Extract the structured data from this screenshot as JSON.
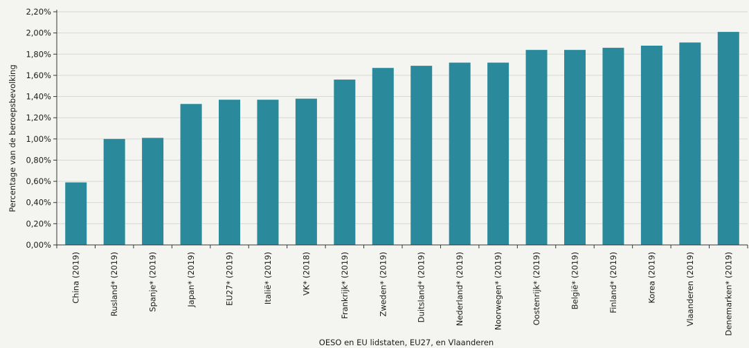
{
  "chart_data": {
    "type": "bar",
    "title": "",
    "xlabel": "OESO en EU lidstaten, EU27, en Vlaanderen",
    "ylabel": "Percentage van de beroepsbevolking",
    "ylim": [
      0,
      2.2
    ],
    "y_ticks": [
      "0,00%",
      "0,20%",
      "0,40%",
      "0,60%",
      "0,80%",
      "1,00%",
      "1,20%",
      "1,40%",
      "1,60%",
      "1,80%",
      "2,00%",
      "2,20%"
    ],
    "grid": true,
    "legend": "none",
    "bar_color": "#2a899a",
    "categories": [
      "China (2019)",
      "Rusland* (2019)",
      "Spanje* (2019)",
      "Japan* (2019)",
      "EU27* (2019)",
      "Italië* (2019)",
      "VK* (2018)",
      "Frankrijk* (2019)",
      "Zweden* (2019)",
      "Duitsland* (2019)",
      "Nederland* (2019)",
      "Noorwegen* (2019)",
      "Oostenrijk* (2019)",
      "België* (2019)",
      "Finland* (2019)",
      "Korea (2019)",
      "Vlaanderen (2019)",
      "Denemarken* (2019)"
    ],
    "values": [
      0.59,
      1.0,
      1.01,
      1.33,
      1.37,
      1.37,
      1.38,
      1.56,
      1.67,
      1.69,
      1.72,
      1.72,
      1.84,
      1.84,
      1.86,
      1.88,
      1.91,
      2.01
    ]
  }
}
